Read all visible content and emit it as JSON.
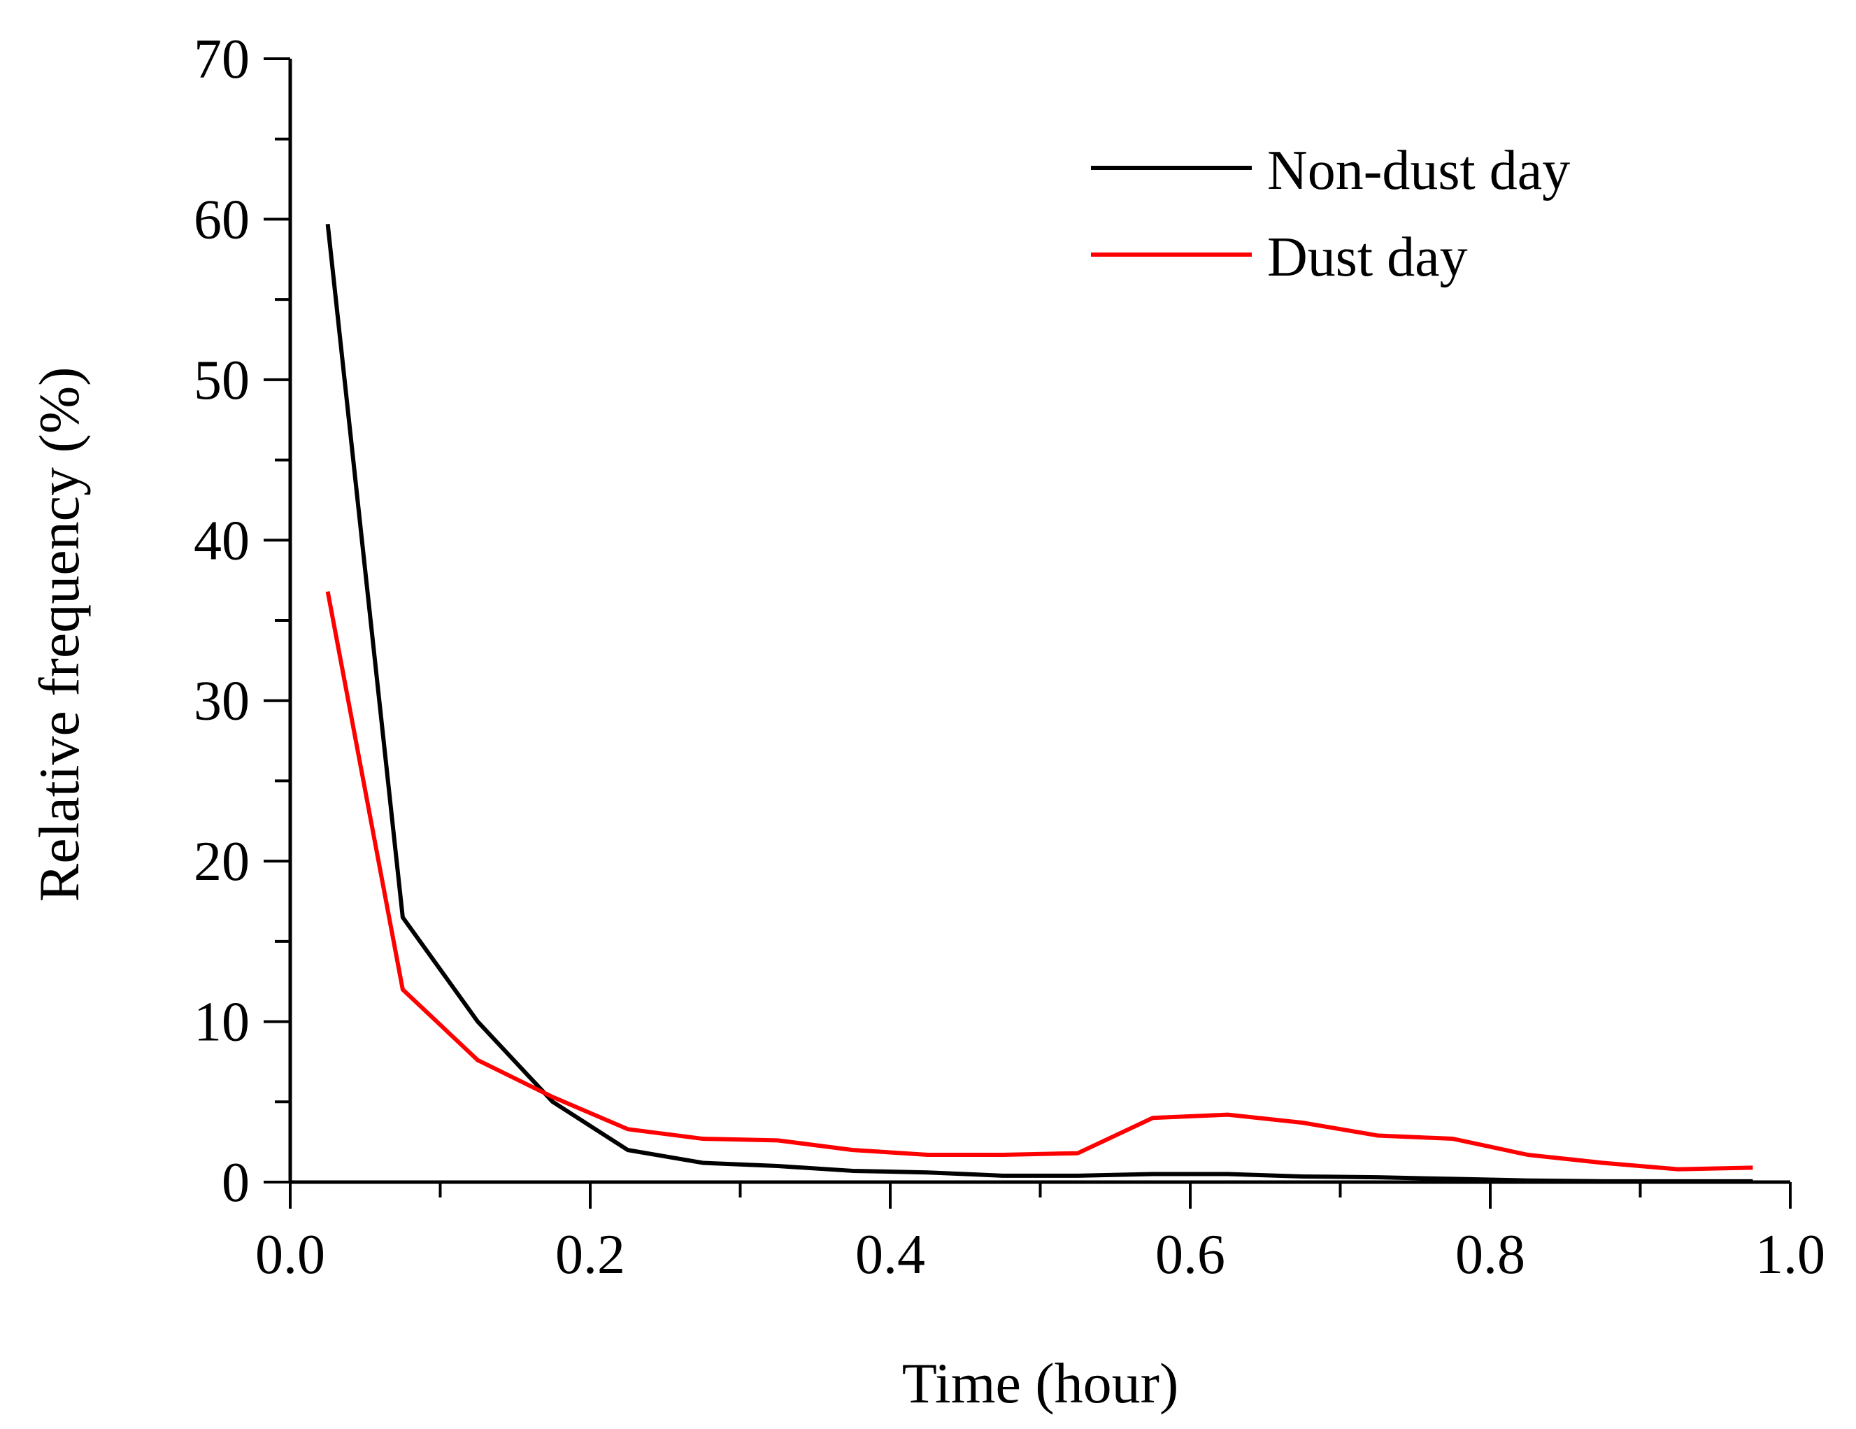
{
  "chart_data": {
    "type": "line",
    "title": "",
    "xlabel": "Time (hour)",
    "ylabel": "Relative frequency (%)",
    "xlim": [
      0.0,
      1.0
    ],
    "ylim": [
      0,
      70
    ],
    "xticks": [
      "0.0",
      "0.2",
      "0.4",
      "0.6",
      "0.8",
      "1.0"
    ],
    "yticks": [
      "0",
      "10",
      "20",
      "30",
      "40",
      "50",
      "60",
      "70"
    ],
    "grid": false,
    "legend_position": "top-right",
    "series": [
      {
        "name": "Non-dust day",
        "color": "#000000",
        "x": [
          0.025,
          0.075,
          0.125,
          0.175,
          0.225,
          0.275,
          0.325,
          0.375,
          0.425,
          0.475,
          0.525,
          0.575,
          0.625,
          0.675,
          0.725,
          0.775,
          0.825,
          0.875,
          0.925,
          0.975
        ],
        "y": [
          59.7,
          16.5,
          10.0,
          5.0,
          2.0,
          1.2,
          1.0,
          0.7,
          0.6,
          0.4,
          0.4,
          0.5,
          0.5,
          0.35,
          0.3,
          0.2,
          0.1,
          0.05,
          0.05,
          0.05
        ]
      },
      {
        "name": "Dust day",
        "color": "#ff0000",
        "x": [
          0.025,
          0.075,
          0.125,
          0.175,
          0.225,
          0.275,
          0.325,
          0.375,
          0.425,
          0.475,
          0.525,
          0.575,
          0.625,
          0.675,
          0.725,
          0.775,
          0.825,
          0.875,
          0.925,
          0.975
        ],
        "y": [
          36.8,
          12.0,
          7.6,
          5.3,
          3.3,
          2.7,
          2.6,
          2.0,
          1.7,
          1.7,
          1.8,
          4.0,
          4.2,
          3.7,
          2.9,
          2.7,
          1.7,
          1.2,
          0.8,
          0.9
        ]
      }
    ]
  }
}
